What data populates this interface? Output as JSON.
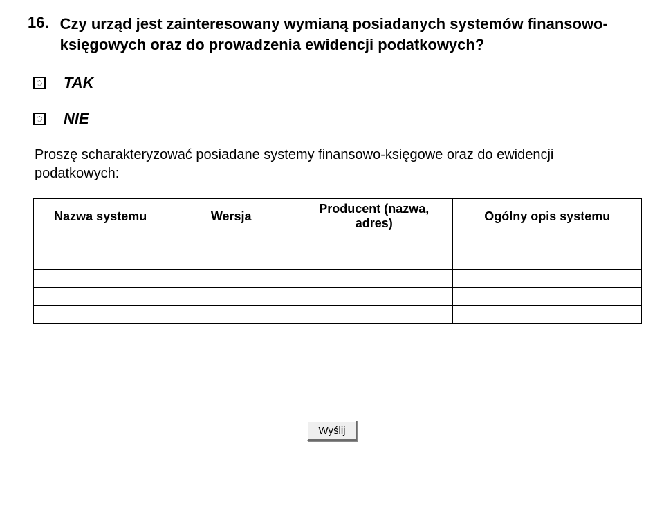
{
  "question": {
    "number": "16.",
    "text": "Czy urząd jest zainteresowany wymianą posiadanych systemów finansowo-księgowych oraz do prowadzenia ewidencji podatkowych?"
  },
  "options": {
    "yes": "TAK",
    "no": "NIE"
  },
  "instruction": "Proszę scharakteryzować posiadane systemy finansowo-księgowe oraz do ewidencji podatkowych:",
  "table": {
    "headers": {
      "name": "Nazwa systemu",
      "version": "Wersja",
      "producer": "Producent (nazwa, adres)",
      "desc": "Ogólny opis systemu"
    },
    "col_widths_pct": [
      22,
      21,
      26,
      31
    ],
    "empty_rows": 5
  },
  "submit_label": "Wyślij",
  "colors": {
    "page_bg": "#ffffff",
    "text": "#000000",
    "button_bg": "#efefef",
    "button_shadow": "#888888"
  },
  "fonts": {
    "heading_pt": 22,
    "body_pt": 20,
    "table_header_pt": 18,
    "button_pt": 15
  }
}
